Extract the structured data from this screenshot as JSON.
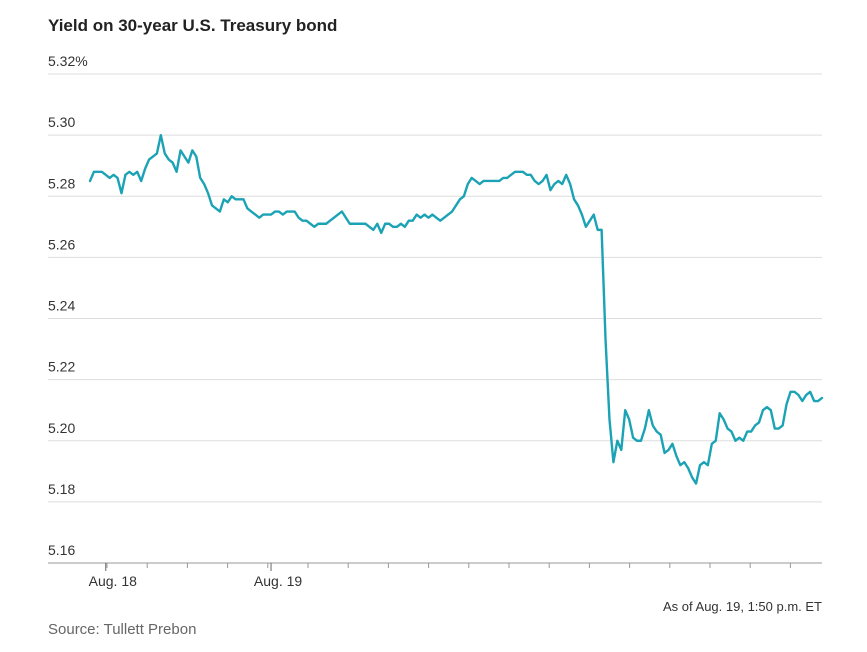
{
  "chart_data": {
    "type": "line",
    "title": "Yield on 30-year U.S. Treasury bond",
    "source": "Source: Tullett Prebon",
    "note": "As of Aug. 19, 1:50 p.m. ET",
    "color": "#1ba3b5",
    "grid": true,
    "ylim": [
      5.16,
      5.32
    ],
    "yticks": [
      5.16,
      5.18,
      {
        "value": 5.2,
        "label": "5.20"
      },
      5.22,
      5.24,
      5.26,
      5.28,
      {
        "value": 5.3,
        "label": "5.30"
      },
      {
        "value": 5.32,
        "label": "5.32%"
      }
    ],
    "categories": [
      null,
      null,
      null,
      null,
      "Aug. 18",
      null,
      null,
      null,
      null,
      null,
      null,
      null,
      null,
      null,
      null,
      null,
      null,
      null,
      null,
      null,
      null,
      null,
      null,
      null,
      null,
      null,
      null,
      null,
      null,
      null,
      null,
      null,
      null,
      null,
      null,
      null,
      null,
      null,
      null,
      null,
      null,
      null,
      null,
      null,
      null,
      null,
      "Aug. 19",
      null,
      null,
      null,
      null,
      null,
      null,
      null,
      null,
      null,
      null,
      null,
      null,
      null,
      null,
      null,
      null,
      null,
      null,
      null,
      null,
      null,
      null,
      null,
      null,
      null,
      null,
      null,
      null,
      null,
      null,
      null,
      null,
      null,
      null,
      null,
      null,
      null,
      null,
      null,
      null,
      null,
      null,
      null,
      null,
      null,
      null,
      null,
      null,
      null,
      null,
      null,
      null,
      null,
      null,
      null,
      null,
      null,
      null,
      null,
      null,
      null,
      null,
      null,
      null,
      null,
      null,
      null,
      null,
      null,
      null,
      null,
      null,
      null,
      null,
      null,
      null,
      null,
      null,
      null,
      null,
      null,
      null,
      null,
      null,
      null,
      null,
      null,
      null,
      null,
      null,
      null,
      null,
      null,
      null,
      null,
      null,
      null,
      null,
      null,
      null,
      null,
      null,
      null,
      null,
      null,
      null,
      null,
      null,
      null,
      null,
      null,
      null,
      null,
      null,
      null,
      null,
      null,
      null,
      null,
      null,
      null,
      null,
      null,
      null,
      null,
      null,
      null,
      null,
      null,
      null,
      null,
      null,
      null,
      null,
      null,
      null,
      null,
      null,
      null,
      null
    ],
    "values": [
      5.285,
      5.288,
      5.288,
      5.288,
      5.287,
      5.286,
      5.287,
      5.286,
      5.281,
      5.287,
      5.288,
      5.287,
      5.288,
      5.285,
      5.289,
      5.292,
      5.293,
      5.294,
      5.3,
      5.294,
      5.292,
      5.291,
      5.288,
      5.295,
      5.293,
      5.291,
      5.295,
      5.293,
      5.286,
      5.284,
      5.281,
      5.277,
      5.276,
      5.275,
      5.279,
      5.278,
      5.28,
      5.279,
      5.279,
      5.279,
      5.276,
      5.275,
      5.274,
      5.273,
      5.274,
      5.274,
      5.274,
      5.275,
      5.275,
      5.274,
      5.275,
      5.275,
      5.275,
      5.273,
      5.272,
      5.272,
      5.271,
      5.27,
      5.271,
      5.271,
      5.271,
      5.272,
      5.273,
      5.274,
      5.275,
      5.273,
      5.271,
      5.271,
      5.271,
      5.271,
      5.271,
      5.27,
      5.269,
      5.271,
      5.268,
      5.271,
      5.271,
      5.27,
      5.27,
      5.271,
      5.27,
      5.272,
      5.272,
      5.274,
      5.273,
      5.274,
      5.273,
      5.274,
      5.273,
      5.272,
      5.273,
      5.274,
      5.275,
      5.277,
      5.279,
      5.28,
      5.284,
      5.286,
      5.285,
      5.284,
      5.285,
      5.285,
      5.285,
      5.285,
      5.285,
      5.286,
      5.286,
      5.287,
      5.288,
      5.288,
      5.288,
      5.287,
      5.287,
      5.285,
      5.284,
      5.285,
      5.287,
      5.282,
      5.284,
      5.285,
      5.284,
      5.287,
      5.284,
      5.279,
      5.277,
      5.274,
      5.27,
      5.272,
      5.274,
      5.269,
      5.269,
      5.233,
      5.207,
      5.193,
      5.2,
      5.197,
      5.21,
      5.207,
      5.201,
      5.2,
      5.2,
      5.204,
      5.21,
      5.205,
      5.203,
      5.202,
      5.196,
      5.197,
      5.199,
      5.195,
      5.192,
      5.193,
      5.191,
      5.188,
      5.186,
      5.192,
      5.193,
      5.192,
      5.199,
      5.2,
      5.209,
      5.207,
      5.204,
      5.203,
      5.2,
      5.201,
      5.2,
      5.203,
      5.203,
      5.205,
      5.206,
      5.21,
      5.211,
      5.21,
      5.204,
      5.204,
      5.205,
      5.212,
      5.216,
      5.216,
      5.215,
      5.213,
      5.215,
      5.216,
      5.213,
      5.213,
      5.214
    ]
  }
}
